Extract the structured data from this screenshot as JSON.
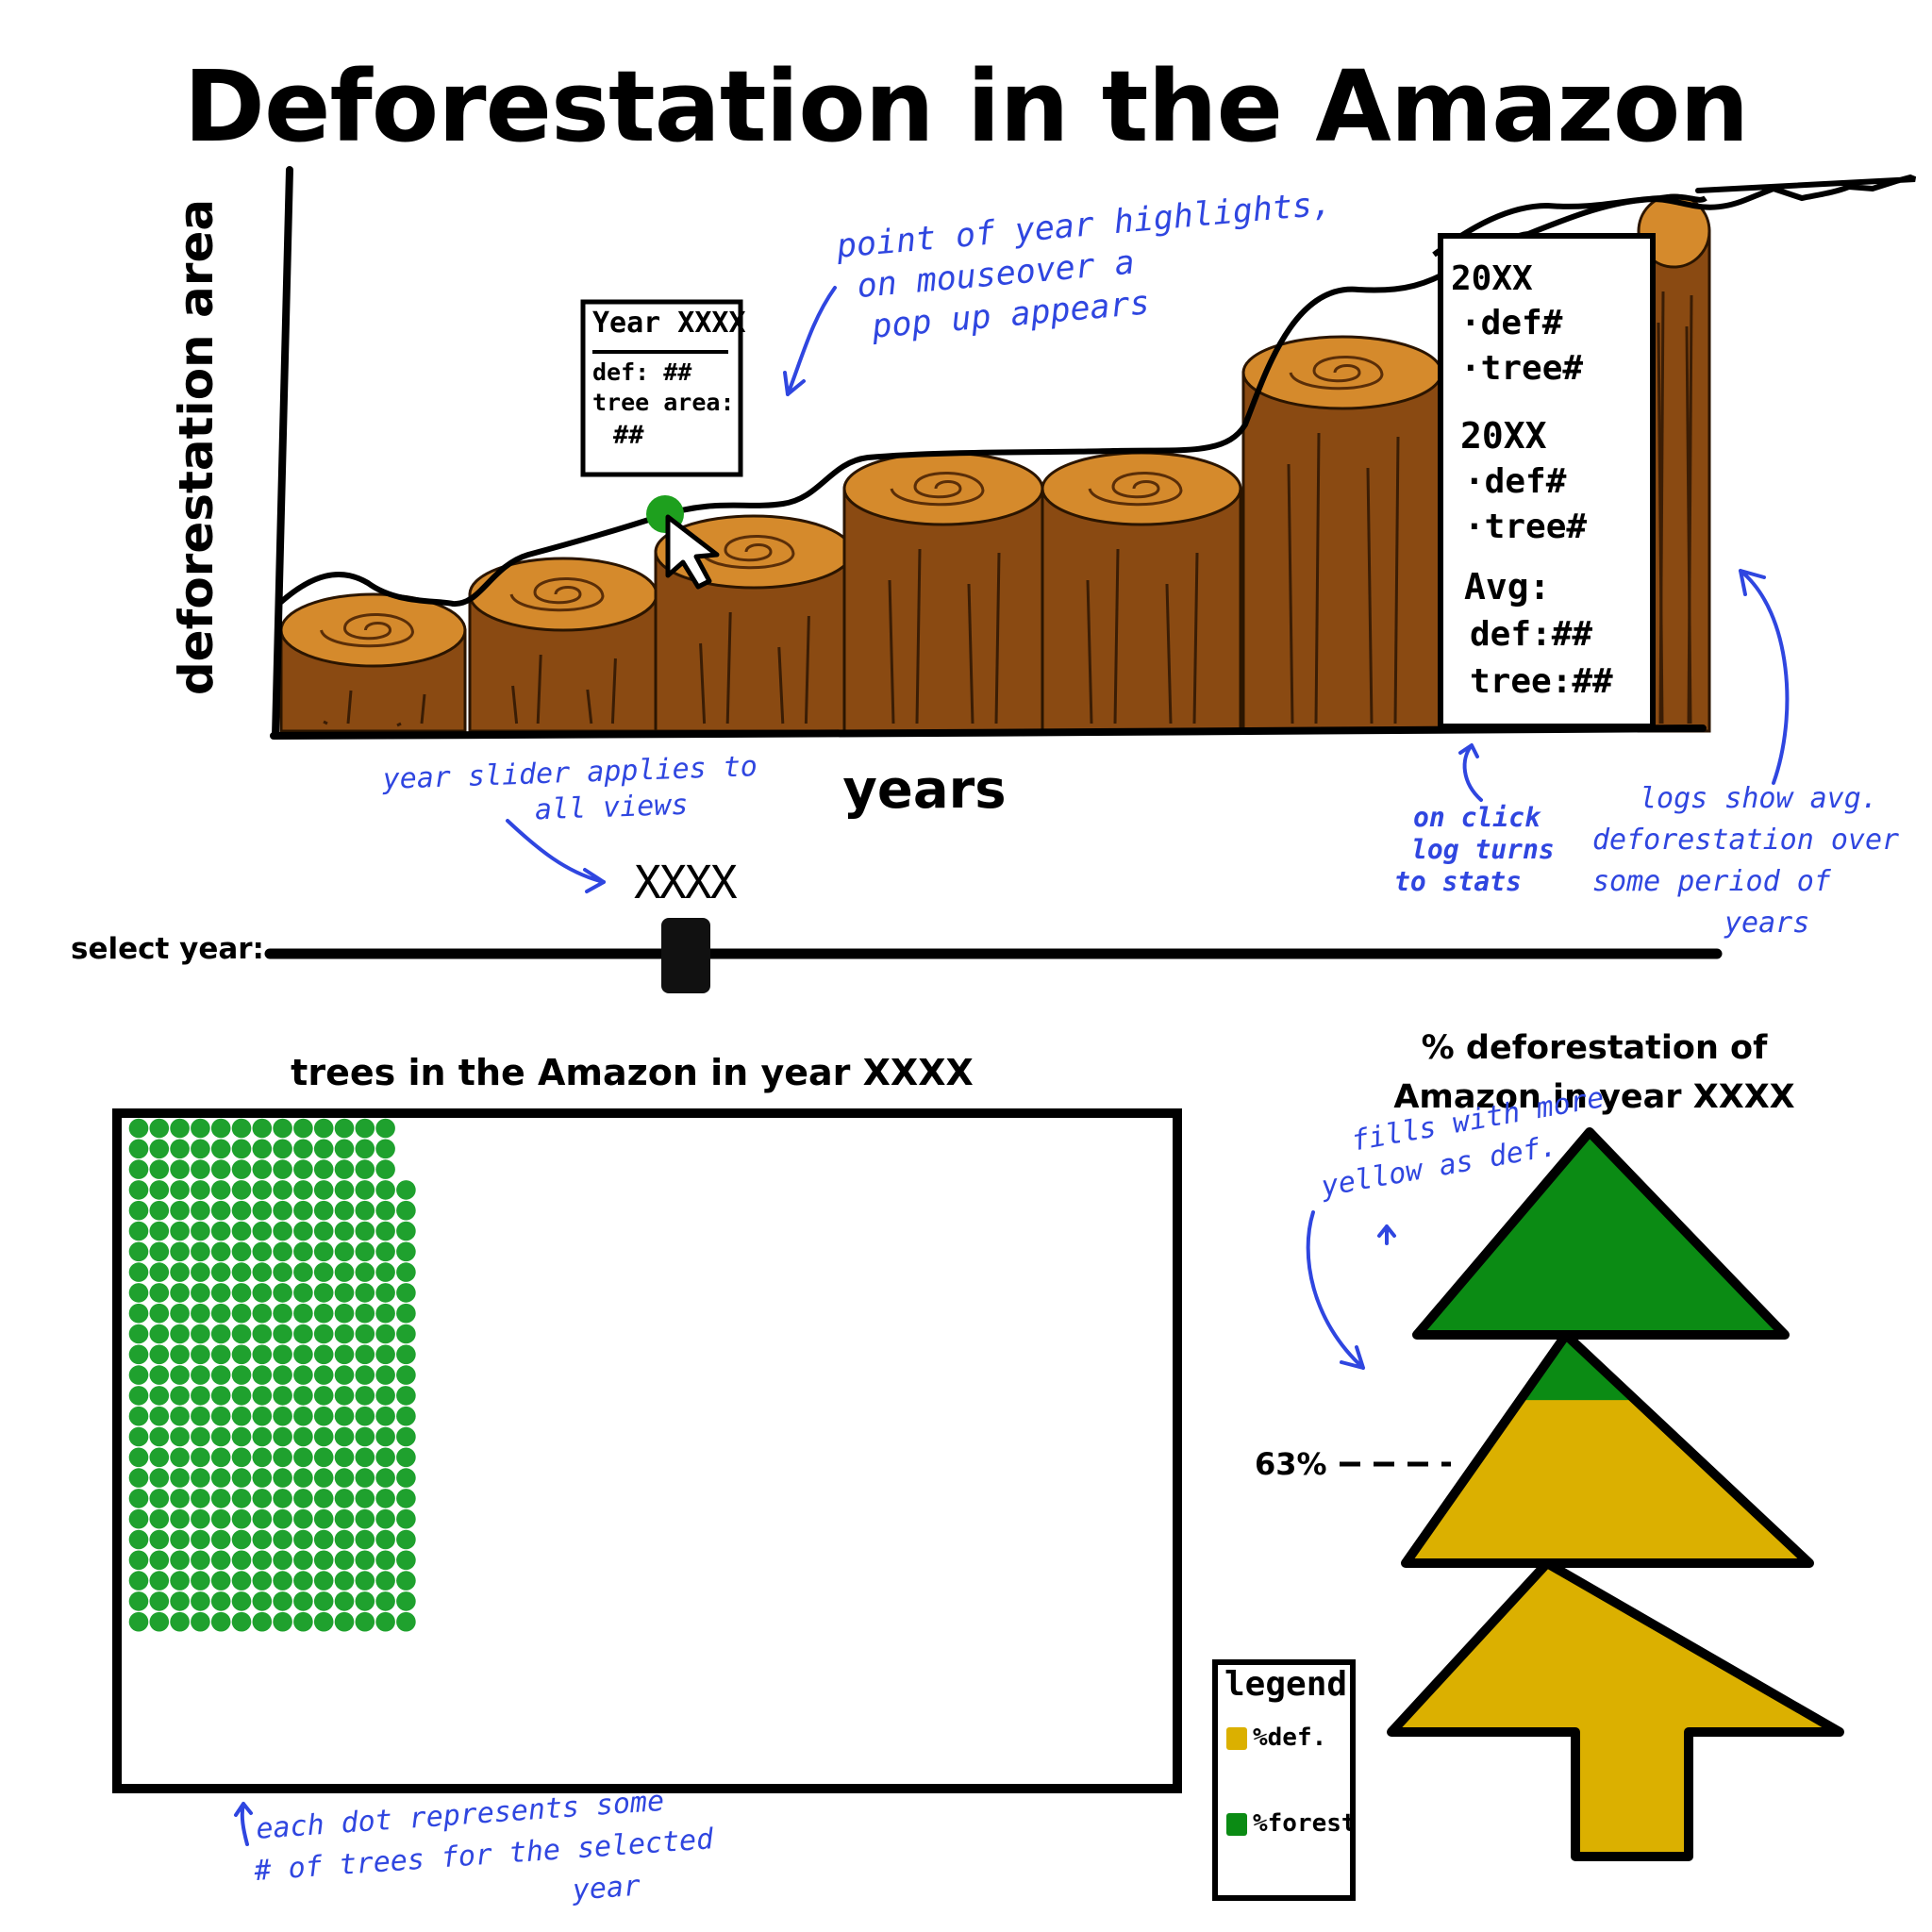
{
  "title": "Deforestation in the Amazon",
  "area_chart": {
    "type": "area",
    "ylabel": "deforestation area",
    "xlabel": "years",
    "note": "Sketch mockup: no numeric axis values are printed.",
    "log_segments": 8
  },
  "tooltip": {
    "year_label": "Year XXXX",
    "def_label": "def: ##",
    "tree_label": "tree area:",
    "tree_value": "##"
  },
  "stats_panel": {
    "year1": "20XX",
    "def1": "·def#",
    "tree1": "·tree#",
    "year2": "20XX",
    "def2": "·def#",
    "tree2": "·tree#",
    "avg_label": "Avg:",
    "avg_def": "def:##",
    "avg_tree": "tree:##"
  },
  "slider": {
    "label": "select year:",
    "value": "XXXX",
    "position_fraction": 0.27
  },
  "waffle": {
    "title": "trees in the Amazon in year XXXX",
    "dot_color": "#1fa12e"
  },
  "tree_gauge": {
    "title_line1": "% deforestation of",
    "title_line2": "Amazon in year XXXX",
    "marker_label": "63%",
    "deforestation_fraction": 0.63,
    "forest_color": "#0b8b14",
    "def_color": "#dbb000"
  },
  "legend": {
    "title": "legend",
    "def_label": "%def.",
    "forest_label": "%forest"
  },
  "annotations": {
    "hover": [
      "point of year highlights,",
      "on mouseover a",
      "pop up appears"
    ],
    "slider": [
      "year slider applies to",
      "all views"
    ],
    "click": [
      "on click",
      "log turns",
      "to stats"
    ],
    "logs": [
      "logs show avg.",
      "deforestation over",
      "some period of",
      "years"
    ],
    "fill": [
      "fills with more",
      "yellow as def."
    ],
    "dots": [
      "each dot represents some",
      "# of trees for the selected",
      "year"
    ]
  },
  "colors": {
    "wood": "#8a4a12",
    "wood_top": "#d58a2c",
    "annotation_blue": "#2f46e0",
    "highlight_point": "#1ea01e"
  }
}
